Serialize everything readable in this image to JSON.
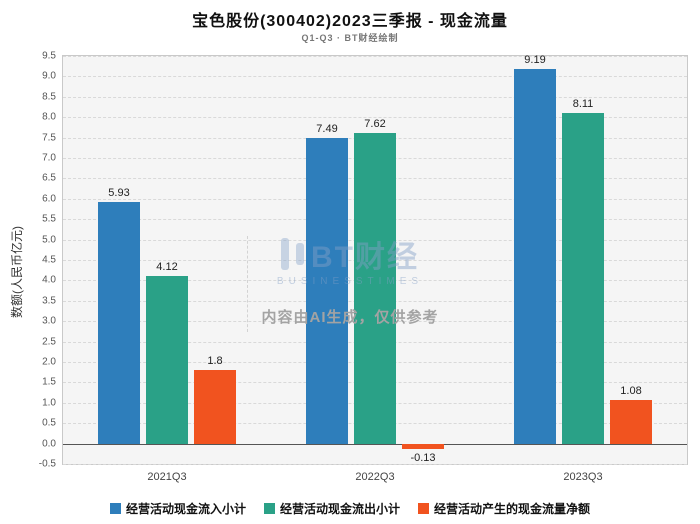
{
  "chart_data": {
    "type": "bar",
    "title": "宝色股份(300402)2023三季报 - 现金流量",
    "subtitle": "Q1-Q3 · BT财经绘制",
    "ylabel": "数额(人民币亿元)",
    "categories": [
      "2021Q3",
      "2022Q3",
      "2023Q3"
    ],
    "series": [
      {
        "name": "经营活动现金流入小计",
        "color": "#2e7ebb",
        "values": [
          5.93,
          7.49,
          9.19
        ]
      },
      {
        "name": "经营活动现金流出小计",
        "color": "#2aa187",
        "values": [
          4.12,
          7.62,
          8.11
        ]
      },
      {
        "name": "经营活动产生的现金流量净额",
        "color": "#f1531f",
        "values": [
          1.8,
          -0.13,
          1.08
        ]
      }
    ],
    "ylim": [
      -0.5,
      9.5
    ],
    "ytick_step": 0.5,
    "grid": true,
    "legend_position": "bottom"
  },
  "watermark": {
    "logo_text": "BT财经",
    "logo_sub": "BUSINESSTIMES",
    "disclaimer": "内容由AI生成，仅供参考"
  }
}
